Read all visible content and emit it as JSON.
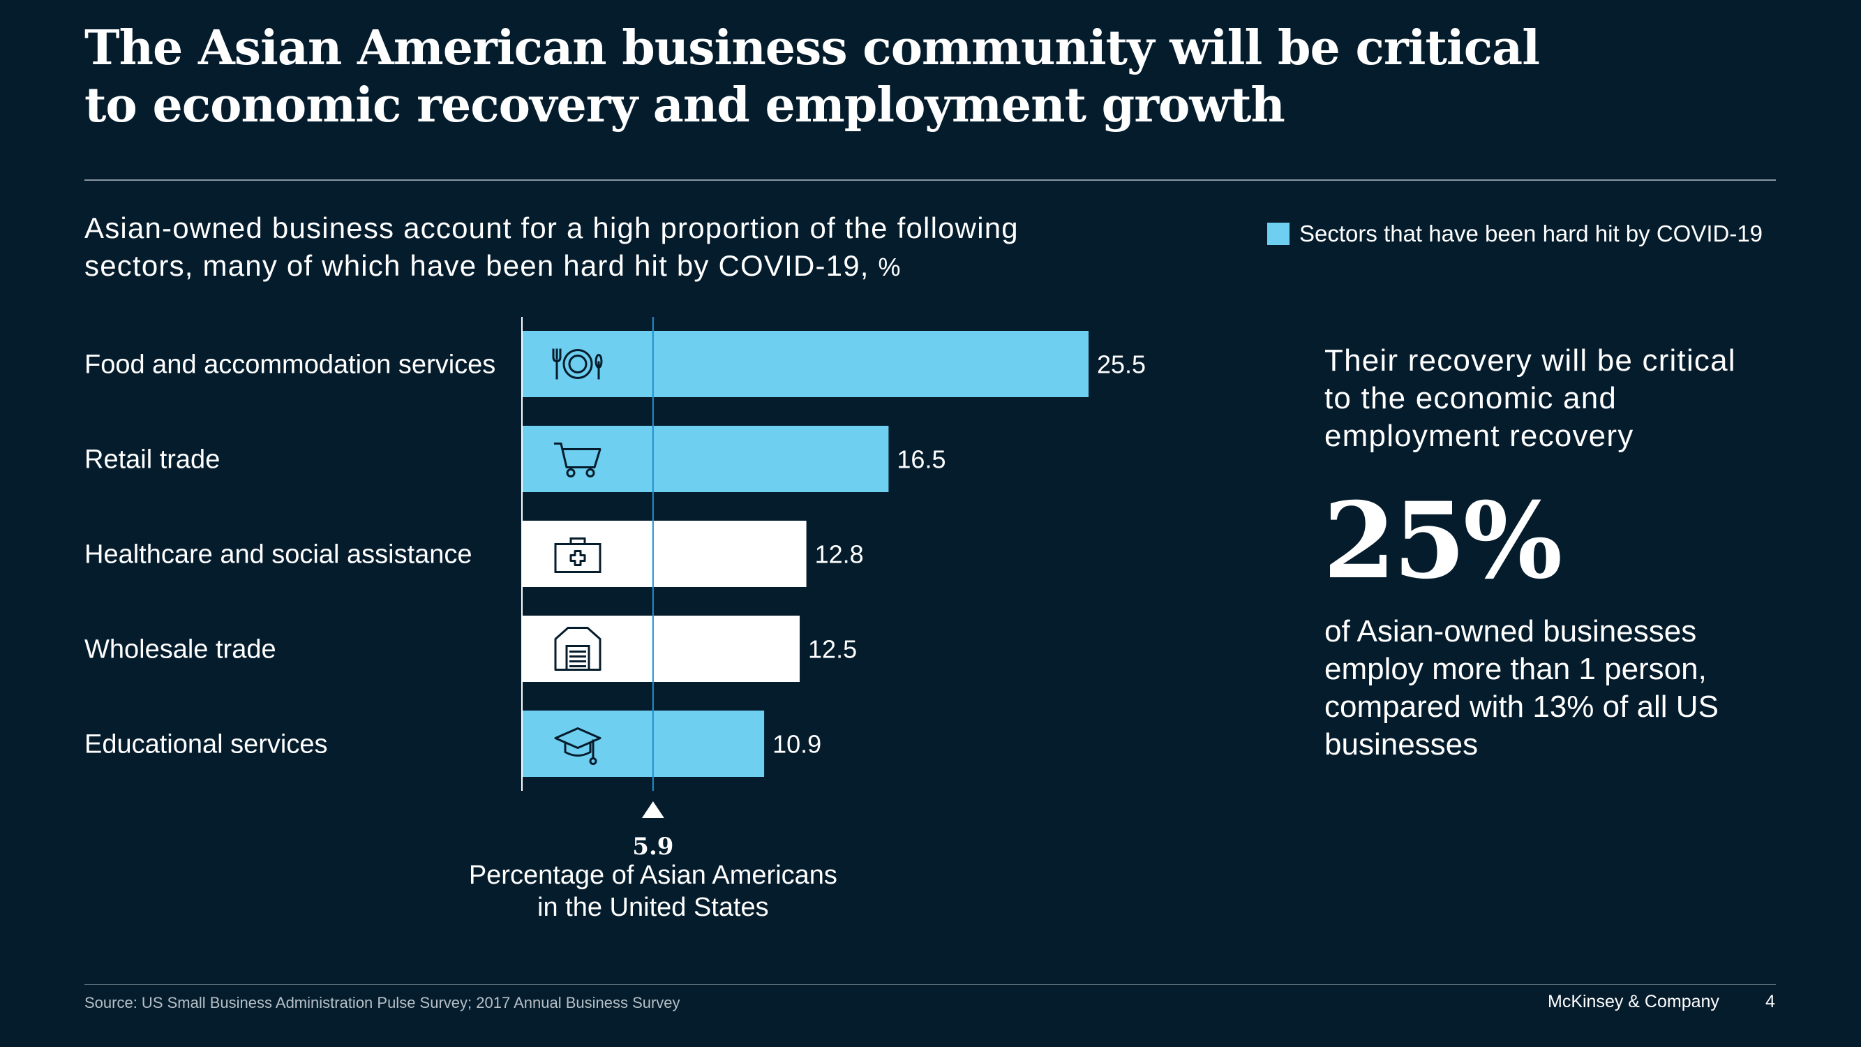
{
  "title": {
    "line1": "The Asian American business community will be critical",
    "line2": "to economic recovery and employment growth"
  },
  "subtitle": {
    "line1": "Asian-owned business account for a high proportion of the following",
    "line2": "sectors, many of which have been hard hit by COVID-19,",
    "unit": "%"
  },
  "legend": {
    "label": "Sectors that have been hard hit by COVID-19",
    "color": "#6ecff0"
  },
  "colors": {
    "background": "#051c2c",
    "hard_hit": "#6ecff0",
    "not_hard_hit": "#ffffff",
    "reference_line": "#1f90d0"
  },
  "chart_data": {
    "type": "bar",
    "orientation": "horizontal",
    "categories": [
      "Food and accommodation services",
      "Retail trade",
      "Healthcare and social assistance",
      "Wholesale trade",
      "Educational services"
    ],
    "values": [
      25.5,
      16.5,
      12.8,
      12.5,
      10.9
    ],
    "hard_hit": [
      true,
      true,
      false,
      false,
      true
    ],
    "icons": [
      "plate-cutlery-icon",
      "shopping-cart-icon",
      "medical-kit-icon",
      "warehouse-icon",
      "graduation-cap-icon"
    ],
    "xlim": [
      0,
      25.5
    ],
    "reference": {
      "value": 5.9,
      "value_label": "5.9",
      "label_line1": "Percentage of Asian Americans",
      "label_line2": "in the United States"
    },
    "grid": false,
    "legend_position": "top-right"
  },
  "side_panel": {
    "heading_line1": "Their recovery will be critical",
    "heading_line2": "to the economic and",
    "heading_line3": "employment recovery",
    "big_stat": "25%",
    "stat_line1": "of Asian-owned businesses",
    "stat_line2": "employ more than 1 person,",
    "stat_line3": "compared with 13% of all US",
    "stat_line4": "businesses"
  },
  "footer": {
    "source": "Source: US Small Business Administration Pulse Survey; 2017 Annual Business Survey",
    "brand": "McKinsey & Company",
    "page_number": "4"
  }
}
